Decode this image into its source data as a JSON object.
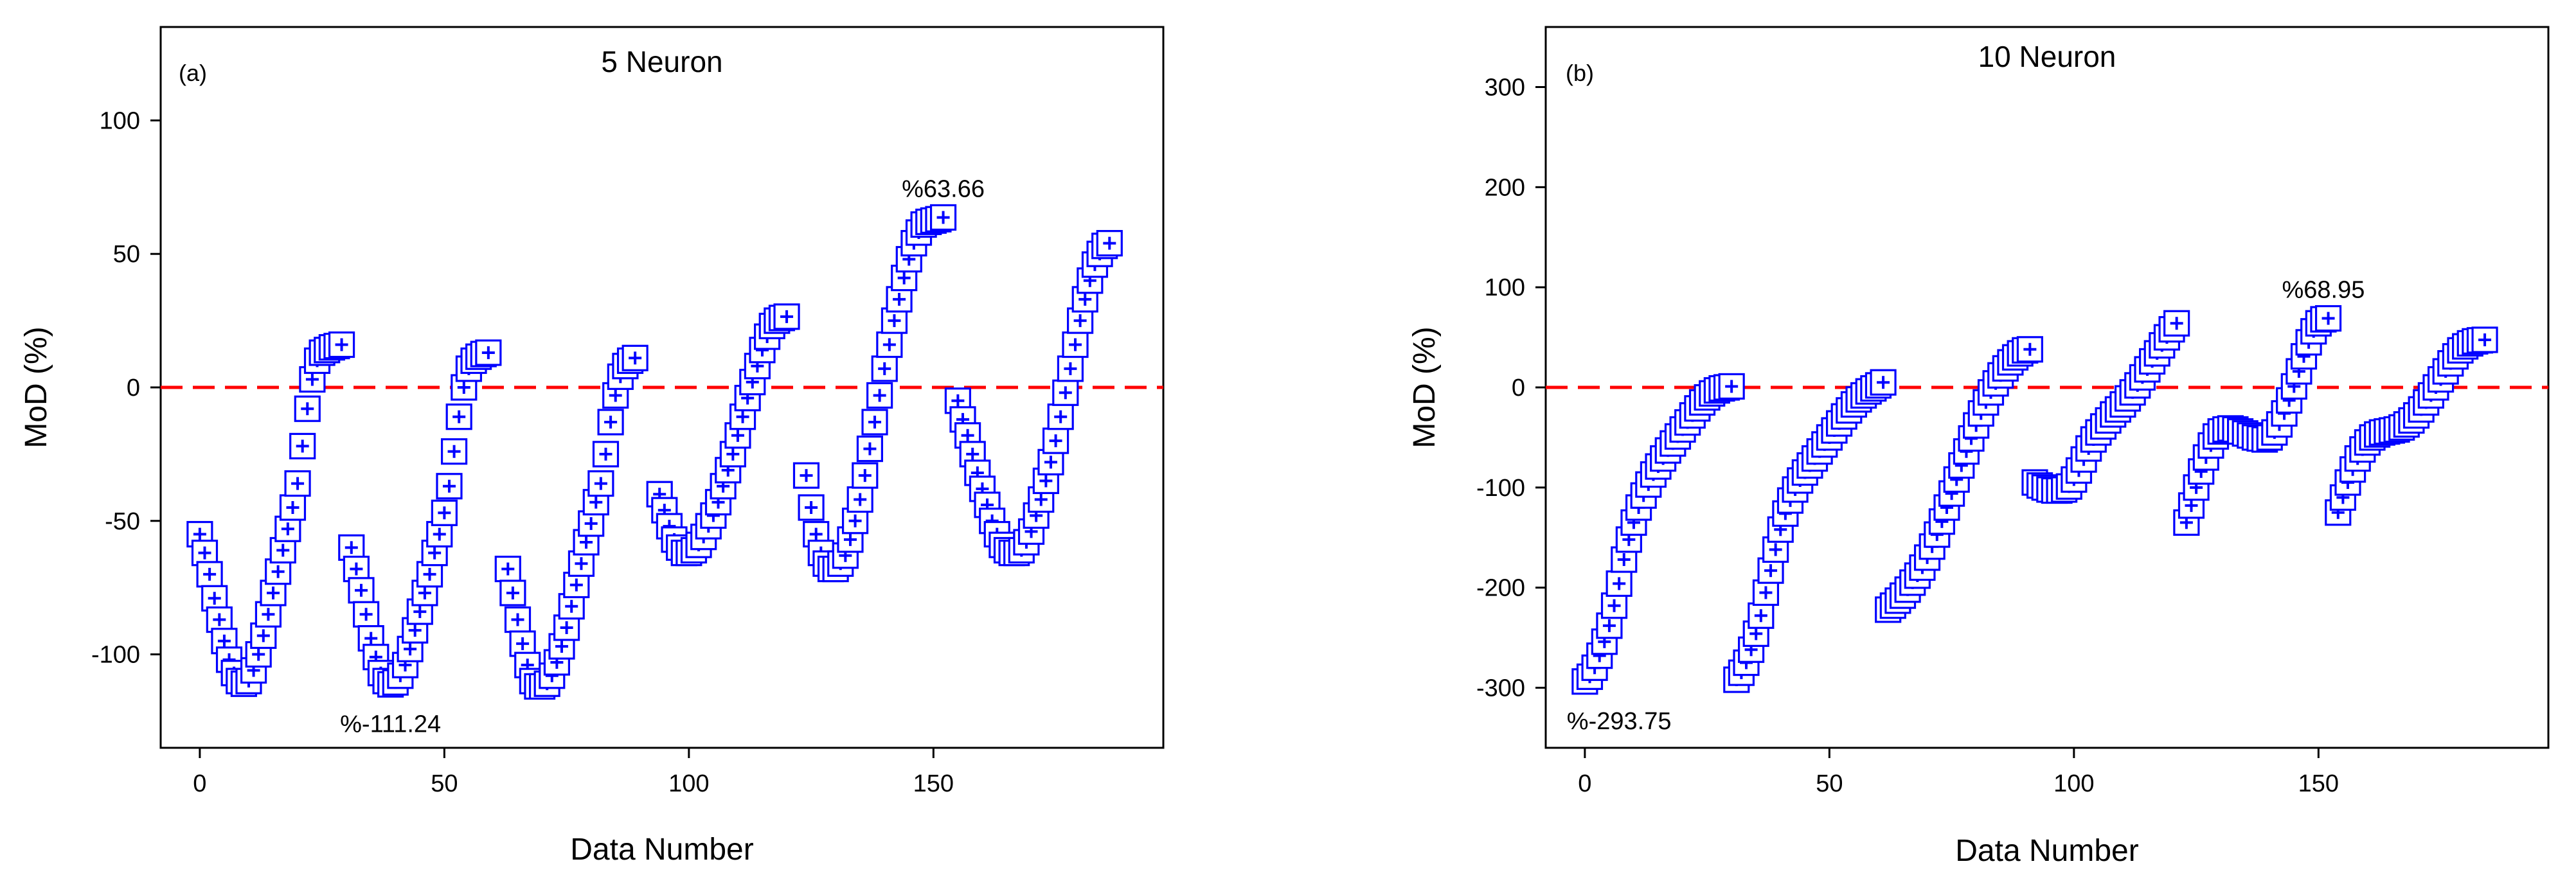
{
  "chart_data": [
    {
      "type": "scatter",
      "panel_label": "(a)",
      "title": "5 Neuron",
      "xlabel": "Data Number",
      "ylabel": "MoD (%)",
      "xlim": [
        -8,
        197
      ],
      "ylim": [
        -135,
        135
      ],
      "xticks": [
        0,
        50,
        100,
        150
      ],
      "yticks": [
        -100,
        -50,
        0,
        50,
        100
      ],
      "reference_line": {
        "y": 0,
        "color": "#ff0000",
        "style": "dashed"
      },
      "marker_color": "#0000ff",
      "segments": [
        {
          "x_start": 0,
          "y": [
            -55,
            -62,
            -70,
            -79,
            -87,
            -95,
            -102,
            -107,
            -110,
            -111,
            -110,
            -106,
            -100,
            -93,
            -85,
            -77,
            -69,
            -61,
            -53,
            -45,
            -36,
            -22,
            -8,
            3,
            10,
            13,
            14,
            15,
            15.5,
            16
          ]
        },
        {
          "x_start": 31,
          "y": [
            -60,
            -68,
            -76,
            -85,
            -94,
            -101,
            -107,
            -110,
            -111.24,
            -110.5,
            -108,
            -104,
            -98,
            -91,
            -84,
            -77,
            -70,
            -62,
            -55,
            -47,
            -37,
            -24,
            -11,
            0,
            7,
            10,
            11.5,
            12.5,
            13
          ]
        },
        {
          "x_start": 63,
          "y": [
            -68,
            -77,
            -87,
            -96,
            -104,
            -110,
            -112,
            -112,
            -111,
            -108,
            -103,
            -97,
            -90,
            -82,
            -74,
            -66,
            -58,
            -51,
            -43,
            -36,
            -25,
            -13,
            -3,
            4,
            8,
            10,
            11
          ]
        },
        {
          "x_start": 94,
          "y": [
            -40,
            -46,
            -52,
            -57,
            -60,
            -62,
            -62,
            -61,
            -59,
            -56,
            -52,
            -48,
            -43,
            -37,
            -31,
            -25,
            -18,
            -11,
            -4,
            2,
            8,
            14,
            19,
            23,
            25,
            26,
            26.5
          ]
        },
        {
          "x_start": 124,
          "y": [
            -33,
            -45,
            -55,
            -62,
            -66,
            -68,
            -68,
            -66,
            -63,
            -57,
            -50,
            -42,
            -33,
            -23,
            -13,
            -3,
            7,
            16,
            25,
            33,
            41,
            48,
            54,
            58,
            61,
            62,
            62.5,
            63,
            63.66
          ]
        },
        {
          "x_start": 155,
          "y": [
            -5,
            -12,
            -18,
            -25,
            -32,
            -38,
            -44,
            -50,
            -55,
            -59,
            -61,
            -62,
            -62,
            -61,
            -58,
            -54,
            -48,
            -42,
            -35,
            -28,
            -20,
            -11,
            -2,
            7,
            16,
            25,
            33,
            40,
            46,
            50,
            53,
            54
          ]
        }
      ],
      "annotations": [
        {
          "text": "%-111.24",
          "x": 39,
          "y": -111.24
        },
        {
          "text": "%63.66",
          "x": 152,
          "y": 63.66
        }
      ]
    },
    {
      "type": "scatter",
      "panel_label": "(b)",
      "title": "10 Neuron",
      "xlabel": "Data Number",
      "ylabel": "MoD (%)",
      "xlim": [
        -8,
        197
      ],
      "ylim": [
        -360,
        360
      ],
      "xticks": [
        0,
        50,
        100,
        150
      ],
      "yticks": [
        -300,
        -200,
        -100,
        0,
        100,
        200,
        300
      ],
      "reference_line": {
        "y": 0,
        "color": "#ff0000",
        "style": "dashed"
      },
      "marker_color": "#0000ff",
      "segments": [
        {
          "x_start": 0,
          "y": [
            -293.75,
            -289,
            -280,
            -268,
            -254,
            -238,
            -218,
            -196,
            -172,
            -152,
            -135,
            -120,
            -108,
            -97,
            -87,
            -79,
            -71,
            -63,
            -56,
            -49,
            -42,
            -35,
            -28,
            -21,
            -15,
            -10,
            -6,
            -3,
            -1,
            0,
            1
          ]
        },
        {
          "x_start": 31,
          "y": [
            -292,
            -285,
            -275,
            -262,
            -246,
            -228,
            -205,
            -183,
            -162,
            -142,
            -126,
            -113,
            -102,
            -93,
            -85,
            -78,
            -71,
            -64,
            -57,
            -50,
            -43,
            -36,
            -29,
            -23,
            -17,
            -12,
            -8,
            -4,
            -1,
            2,
            5
          ]
        },
        {
          "x_start": 62,
          "y": [
            -222,
            -218,
            -213,
            -208,
            -202,
            -195,
            -188,
            -180,
            -170,
            -159,
            -147,
            -134,
            -120,
            -106,
            -92,
            -78,
            -64,
            -51,
            -38,
            -26,
            -15,
            -5,
            4,
            12,
            19,
            25,
            30,
            34,
            37,
            38
          ]
        },
        {
          "x_start": 92,
          "y": [
            -95,
            -98,
            -100,
            -102,
            -103,
            -103,
            -102,
            -99,
            -92,
            -83,
            -72,
            -61,
            -52,
            -45,
            -39,
            -33,
            -27,
            -22,
            -17,
            -11,
            -5,
            2,
            10,
            18,
            26,
            34,
            42,
            50,
            58,
            64
          ]
        },
        {
          "x_start": 123,
          "y": [
            -135,
            -118,
            -100,
            -84,
            -70,
            -58,
            -49,
            -44,
            -42,
            -41,
            -42,
            -44,
            -46,
            -48,
            -50,
            -51,
            -52,
            -50,
            -45,
            -37,
            -26,
            -13,
            1,
            16,
            31,
            45,
            56,
            64,
            68,
            68.95
          ]
        },
        {
          "x_start": 154,
          "y": [
            -125,
            -110,
            -95,
            -82,
            -71,
            -62,
            -55,
            -50,
            -47,
            -45,
            -44,
            -43,
            -42,
            -40,
            -37,
            -33,
            -28,
            -22,
            -15,
            -8,
            0,
            8,
            16,
            24,
            31,
            37,
            41,
            44,
            46,
            47,
            47.5
          ]
        }
      ],
      "annotations": [
        {
          "text": "%-293.75",
          "x": 7,
          "y": -293.75
        },
        {
          "text": "%68.95",
          "x": 151,
          "y": 68.95
        }
      ]
    }
  ]
}
